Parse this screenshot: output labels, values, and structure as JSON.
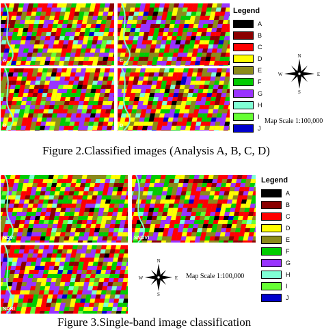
{
  "figure2": {
    "panels": [
      {
        "label": "A",
        "seed": 11
      },
      {
        "label": "C",
        "seed": 23
      },
      {
        "label": "B",
        "seed": 37
      },
      {
        "label": "D",
        "seed": 51
      }
    ],
    "legend": {
      "title": "Legend",
      "classes": [
        {
          "label": "A",
          "color": "#000000"
        },
        {
          "label": "B",
          "color": "#8b0000"
        },
        {
          "label": "C",
          "color": "#ff0000"
        },
        {
          "label": "D",
          "color": "#ffff00"
        },
        {
          "label": "E",
          "color": "#8b8b1a"
        },
        {
          "label": "F",
          "color": "#00cc00"
        },
        {
          "label": "G",
          "color": "#9933ff"
        },
        {
          "label": "H",
          "color": "#7fffd4"
        },
        {
          "label": "I",
          "color": "#66ff33"
        },
        {
          "label": "J",
          "color": "#0000cc"
        }
      ]
    },
    "compass": {
      "n": "N",
      "s": "S",
      "e": "E",
      "w": "W"
    },
    "scale": "Map Scale 1:100,000",
    "caption": "Figure 2.Classified images (Analysis A, B, C, D)"
  },
  "figure3": {
    "panels": [
      {
        "label": "NDVI",
        "seed": 71
      },
      {
        "label": "SNDVI",
        "seed": 83
      },
      {
        "label": "NDRI",
        "seed": 97
      }
    ],
    "legend": {
      "title": "Legend",
      "classes": [
        {
          "label": "A",
          "color": "#000000"
        },
        {
          "label": "B",
          "color": "#8b0000"
        },
        {
          "label": "C",
          "color": "#ff0000"
        },
        {
          "label": "D",
          "color": "#ffff00"
        },
        {
          "label": "E",
          "color": "#8b8b1a"
        },
        {
          "label": "F",
          "color": "#00cc00"
        },
        {
          "label": "G",
          "color": "#9933ff"
        },
        {
          "label": "H",
          "color": "#7fffd4"
        },
        {
          "label": "I",
          "color": "#66ff33"
        },
        {
          "label": "J",
          "color": "#0000cc"
        }
      ]
    },
    "compass": {
      "n": "N",
      "s": "S",
      "e": "E",
      "w": "W"
    },
    "scale": "Map Scale 1:100,000",
    "caption": "Figure 3.Single-band image classification"
  }
}
